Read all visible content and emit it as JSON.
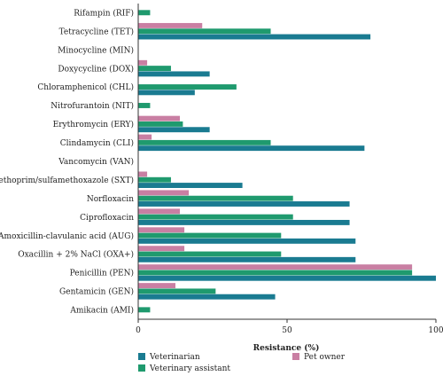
{
  "chart_data": {
    "type": "bar",
    "orientation": "horizontal",
    "xlabel": "Resistance (%)",
    "ylabel": "",
    "title": "",
    "xlim": [
      0,
      100
    ],
    "xticks": [
      "0",
      "50",
      "100"
    ],
    "grid": false,
    "legend_position": "bottom",
    "categories": [
      "Rifampin (RIF)",
      "Tetracycline (TET)",
      "Minocycline (MIN)",
      "Doxycycline (DOX)",
      "Chloramphenicol (CHL)",
      "Nitrofurantoin (NIT)",
      "Erythromycin (ERY)",
      "Clindamycin (CLI)",
      "Vancomycin (VAN)",
      "Trimethoprim/sulfamethoxazole (SXT)",
      "Norfloxacin",
      "Ciprofloxacin",
      "Amoxicillin-clavulanic acid (AUG)",
      "Oxacillin + 2% NaCl (OXA+)",
      "Penicillin (PEN)",
      "Gentamicin (GEN)",
      "Amikacin (AMI)"
    ],
    "series": [
      {
        "name": "Pet owner",
        "color": "#c97fa3",
        "values": [
          0,
          21.5,
          0,
          3,
          0,
          0,
          14,
          4.5,
          0,
          3,
          17,
          14,
          15.5,
          15.5,
          92,
          12.5,
          0
        ]
      },
      {
        "name": "Veterinary assistant",
        "color": "#1f9a6e",
        "values": [
          4,
          44.5,
          0,
          11,
          33,
          4,
          15,
          44.5,
          0,
          11,
          52,
          52,
          48,
          48,
          92,
          26,
          4
        ]
      },
      {
        "name": "Veterinarian",
        "color": "#1a7b91",
        "values": [
          0,
          78,
          0,
          24,
          19,
          0,
          24,
          76,
          0,
          35,
          71,
          71,
          73,
          73,
          100,
          46,
          0
        ]
      }
    ],
    "legend": {
      "items": [
        {
          "name": "Veterinarian",
          "color": "#1a7b91"
        },
        {
          "name": "Pet owner",
          "color": "#c97fa3"
        },
        {
          "name": "Veterinary assistant",
          "color": "#1f9a6e"
        }
      ]
    }
  }
}
